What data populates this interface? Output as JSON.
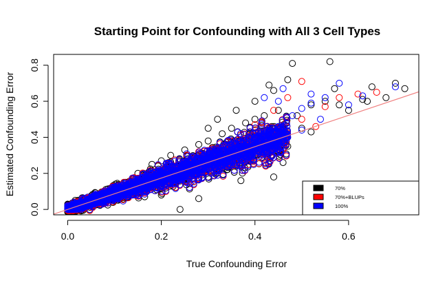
{
  "chart_data": {
    "type": "scatter",
    "title": "Starting Point for Confounding with All 3 Cell Types",
    "xlabel": "True Confounding Error",
    "ylabel": "Estimated Confounding Error",
    "xlim": [
      -0.03,
      0.75
    ],
    "ylim": [
      -0.03,
      0.86
    ],
    "x_ticks": [
      0.0,
      0.2,
      0.4,
      0.6
    ],
    "x_tick_labels": [
      "0.0",
      "0.2",
      "0.4",
      "0.6"
    ],
    "y_ticks": [
      0.0,
      0.2,
      0.4,
      0.6,
      0.8
    ],
    "y_tick_labels": [
      "0.0",
      "0.2",
      "0.4",
      "0.6",
      "0.8"
    ],
    "grid": false,
    "legend_position": "bottom-right",
    "reference_line": {
      "intercept": 0.0,
      "slope": 0.87,
      "color": "#f08080"
    },
    "series": [
      {
        "name": "70%",
        "color": "#000000",
        "marker": "open-circle",
        "points": [
          [
            0.01,
            0.005
          ],
          [
            0.03,
            0.02
          ],
          [
            0.05,
            0.05
          ],
          [
            0.08,
            0.09
          ],
          [
            0.1,
            0.12
          ],
          [
            0.12,
            0.15
          ],
          [
            0.15,
            0.2
          ],
          [
            0.18,
            0.25
          ],
          [
            0.2,
            0.27
          ],
          [
            0.22,
            0.3
          ],
          [
            0.25,
            0.33
          ],
          [
            0.28,
            0.36
          ],
          [
            0.3,
            0.38
          ],
          [
            0.33,
            0.42
          ],
          [
            0.35,
            0.45
          ],
          [
            0.38,
            0.48
          ],
          [
            0.4,
            0.5
          ],
          [
            0.42,
            0.52
          ],
          [
            0.45,
            0.55
          ],
          [
            0.3,
            0.45
          ],
          [
            0.32,
            0.5
          ],
          [
            0.36,
            0.55
          ],
          [
            0.4,
            0.6
          ],
          [
            0.44,
            0.66
          ],
          [
            0.47,
            0.72
          ],
          [
            0.48,
            0.81
          ],
          [
            0.43,
            0.69
          ],
          [
            0.2,
            0.08
          ],
          [
            0.3,
            0.18
          ],
          [
            0.34,
            0.22
          ],
          [
            0.38,
            0.27
          ],
          [
            0.4,
            0.3
          ],
          [
            0.45,
            0.32
          ],
          [
            0.47,
            0.35
          ],
          [
            0.5,
            0.45
          ],
          [
            0.52,
            0.43
          ],
          [
            0.55,
            0.6
          ],
          [
            0.57,
            0.67
          ],
          [
            0.6,
            0.55
          ],
          [
            0.64,
            0.6
          ],
          [
            0.65,
            0.68
          ],
          [
            0.68,
            0.62
          ],
          [
            0.7,
            0.7
          ],
          [
            0.72,
            0.67
          ],
          [
            0.76,
            0.67
          ],
          [
            0.56,
            0.82
          ],
          [
            0.58,
            0.58
          ],
          [
            0.63,
            0.61
          ],
          [
            0.24,
            0.0
          ],
          [
            0.28,
            0.06
          ],
          [
            0.37,
            0.16
          ],
          [
            0.44,
            0.18
          ],
          [
            0.46,
            0.26
          ],
          [
            0.52,
            0.58
          ],
          [
            0.49,
            0.52
          ]
        ]
      },
      {
        "name": "70%+BLUPs",
        "color": "#ff0000",
        "marker": "open-circle",
        "points": [
          [
            0.05,
            0.05
          ],
          [
            0.12,
            0.12
          ],
          [
            0.2,
            0.2
          ],
          [
            0.28,
            0.32
          ],
          [
            0.35,
            0.38
          ],
          [
            0.4,
            0.47
          ],
          [
            0.44,
            0.55
          ],
          [
            0.47,
            0.62
          ],
          [
            0.5,
            0.5
          ],
          [
            0.55,
            0.57
          ],
          [
            0.58,
            0.62
          ],
          [
            0.62,
            0.64
          ],
          [
            0.66,
            0.65
          ],
          [
            0.5,
            0.71
          ],
          [
            0.42,
            0.28
          ],
          [
            0.46,
            0.33
          ],
          [
            0.53,
            0.46
          ],
          [
            0.36,
            0.3
          ],
          [
            0.3,
            0.26
          ]
        ]
      },
      {
        "name": "100%",
        "color": "#0000ff",
        "marker": "open-circle",
        "points": [
          [
            0.1,
            0.1
          ],
          [
            0.2,
            0.2
          ],
          [
            0.3,
            0.3
          ],
          [
            0.4,
            0.4
          ],
          [
            0.45,
            0.46
          ],
          [
            0.48,
            0.52
          ],
          [
            0.5,
            0.56
          ],
          [
            0.52,
            0.59
          ],
          [
            0.55,
            0.62
          ],
          [
            0.6,
            0.58
          ],
          [
            0.63,
            0.63
          ],
          [
            0.7,
            0.68
          ],
          [
            0.44,
            0.35
          ],
          [
            0.47,
            0.4
          ],
          [
            0.5,
            0.44
          ],
          [
            0.42,
            0.62
          ],
          [
            0.46,
            0.67
          ],
          [
            0.52,
            0.64
          ],
          [
            0.58,
            0.7
          ],
          [
            0.36,
            0.27
          ],
          [
            0.4,
            0.33
          ],
          [
            0.54,
            0.5
          ],
          [
            0.45,
            0.6
          ]
        ]
      }
    ]
  }
}
